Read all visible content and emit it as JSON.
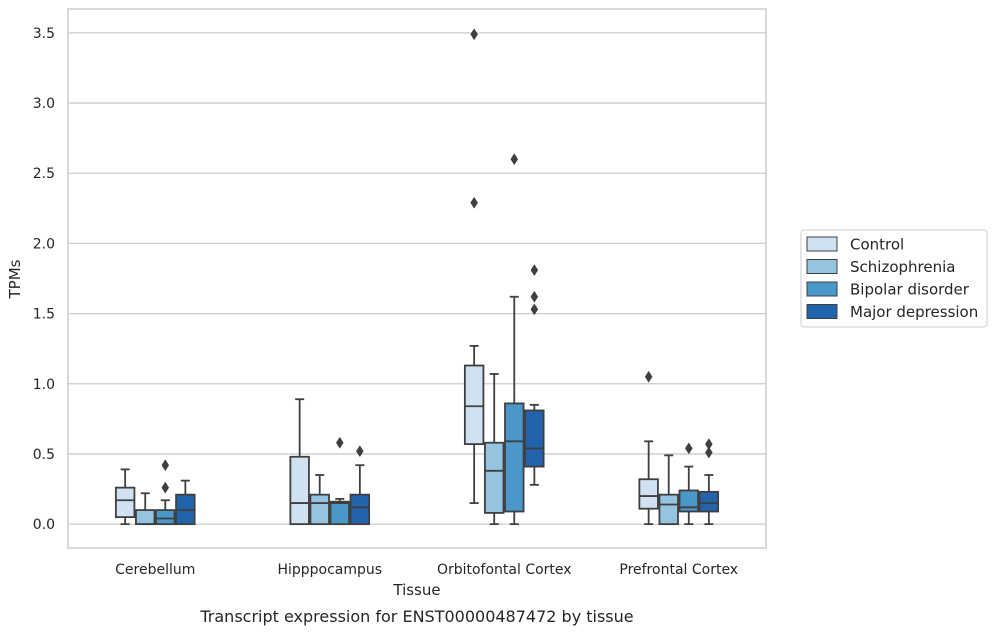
{
  "chart_data": {
    "type": "box",
    "xlabel": "Tissue",
    "ylabel": "TPMs",
    "caption": "Transcript expression for ENST00000487472 by tissue",
    "ylim": [
      -0.17,
      3.67
    ],
    "yticks": [
      0.0,
      0.5,
      1.0,
      1.5,
      2.0,
      2.5,
      3.0,
      3.5
    ],
    "ytick_labels": [
      "0.0",
      "0.5",
      "1.0",
      "1.5",
      "2.0",
      "2.5",
      "3.0",
      "3.5"
    ],
    "grid": "horizontal",
    "legend_position": "right",
    "categories": [
      "Cerebellum",
      "Hipppocampus",
      "Orbitofontal Cortex",
      "Prefrontal Cortex"
    ],
    "series": [
      {
        "name": "Control",
        "color": "#d0e1f2",
        "boxes": [
          {
            "q1": 0.05,
            "median": 0.17,
            "q3": 0.26,
            "whisker_low": 0.0,
            "whisker_high": 0.39,
            "outliers": []
          },
          {
            "q1": 0.0,
            "median": 0.15,
            "q3": 0.48,
            "whisker_low": 0.0,
            "whisker_high": 0.89,
            "outliers": []
          },
          {
            "q1": 0.57,
            "median": 0.84,
            "q3": 1.13,
            "whisker_low": 0.15,
            "whisker_high": 1.27,
            "outliers": [
              2.29,
              3.49
            ]
          },
          {
            "q1": 0.11,
            "median": 0.2,
            "q3": 0.32,
            "whisker_low": 0.0,
            "whisker_high": 0.59,
            "outliers": [
              1.05
            ]
          }
        ]
      },
      {
        "name": "Schizophrenia",
        "color": "#94c4df",
        "boxes": [
          {
            "q1": 0.0,
            "median": 0.0,
            "q3": 0.1,
            "whisker_low": 0.0,
            "whisker_high": 0.22,
            "outliers": []
          },
          {
            "q1": 0.0,
            "median": 0.15,
            "q3": 0.21,
            "whisker_low": 0.0,
            "whisker_high": 0.35,
            "outliers": []
          },
          {
            "q1": 0.08,
            "median": 0.38,
            "q3": 0.58,
            "whisker_low": 0.0,
            "whisker_high": 1.07,
            "outliers": []
          },
          {
            "q1": 0.0,
            "median": 0.14,
            "q3": 0.21,
            "whisker_low": 0.0,
            "whisker_high": 0.49,
            "outliers": []
          }
        ]
      },
      {
        "name": "Bipolar disorder",
        "color": "#4a98c9",
        "boxes": [
          {
            "q1": 0.0,
            "median": 0.04,
            "q3": 0.1,
            "whisker_low": 0.0,
            "whisker_high": 0.17,
            "outliers": [
              0.26,
              0.42
            ]
          },
          {
            "q1": 0.0,
            "median": 0.15,
            "q3": 0.16,
            "whisker_low": 0.0,
            "whisker_high": 0.18,
            "outliers": [
              0.58
            ]
          },
          {
            "q1": 0.09,
            "median": 0.59,
            "q3": 0.86,
            "whisker_low": 0.0,
            "whisker_high": 1.62,
            "outliers": [
              2.6
            ]
          },
          {
            "q1": 0.09,
            "median": 0.12,
            "q3": 0.24,
            "whisker_low": 0.0,
            "whisker_high": 0.41,
            "outliers": [
              0.54
            ]
          }
        ]
      },
      {
        "name": "Major depression",
        "color": "#2164ab",
        "boxes": [
          {
            "q1": 0.0,
            "median": 0.1,
            "q3": 0.21,
            "whisker_low": 0.0,
            "whisker_high": 0.31,
            "outliers": []
          },
          {
            "q1": 0.0,
            "median": 0.12,
            "q3": 0.21,
            "whisker_low": 0.0,
            "whisker_high": 0.42,
            "outliers": [
              0.52
            ]
          },
          {
            "q1": 0.41,
            "median": 0.54,
            "q3": 0.81,
            "whisker_low": 0.28,
            "whisker_high": 0.85,
            "outliers": [
              1.53,
              1.62,
              1.81
            ]
          },
          {
            "q1": 0.09,
            "median": 0.15,
            "q3": 0.23,
            "whisker_low": 0.0,
            "whisker_high": 0.35,
            "outliers": [
              0.51,
              0.57
            ]
          }
        ]
      }
    ],
    "colors": {
      "axes_edge": "#cccccc",
      "grid": "#cccccc",
      "box_edge": "#3f3f3f"
    }
  }
}
